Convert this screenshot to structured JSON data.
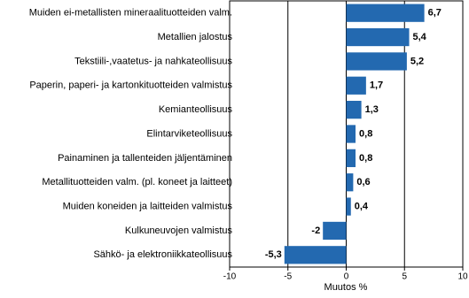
{
  "chart_data": {
    "type": "barh",
    "x_label": "Muutos  %",
    "categories": [
      "Muiden ei-metallisten mineraalituotteiden valm.",
      "Metallien jalostus",
      "Tekstiili-,vaatetus- ja nahkateollisuus",
      "Paperin, paperi- ja kartonkituotteiden valmistus",
      "Kemianteollisuus",
      "Elintarviketeollisuus",
      "Painaminen ja tallenteiden jäljentäminen",
      "Metallituotteiden valm. (pl. koneet ja laitteet)",
      "Muiden koneiden ja laitteiden valmistus",
      "Kulkuneuvojen valmistus",
      "Sähkö- ja elektroniikkateollisuus"
    ],
    "values": [
      6.7,
      5.4,
      5.2,
      1.7,
      1.3,
      0.8,
      0.8,
      0.6,
      0.4,
      -2,
      -5.3
    ],
    "value_labels": [
      "6,7",
      "5,4",
      "5,2",
      "1,7",
      "1,3",
      "0,8",
      "0,8",
      "0,6",
      "0,4",
      "-2",
      "-5,3"
    ],
    "color": "#2369b0",
    "xlim": [
      -10,
      10
    ],
    "xticks": [
      -10,
      -5,
      0,
      5,
      10
    ],
    "grid": true
  }
}
